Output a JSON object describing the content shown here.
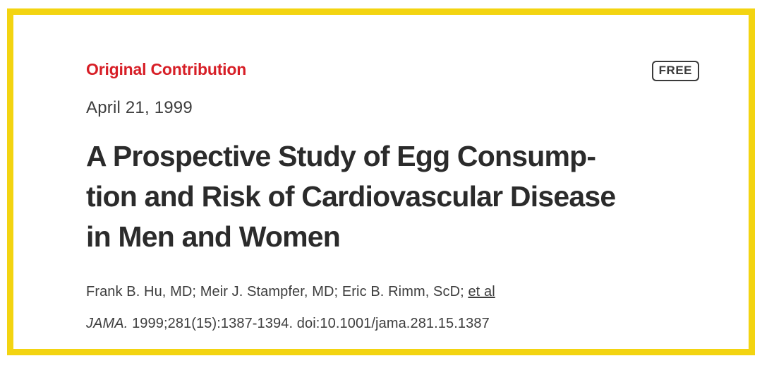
{
  "colors": {
    "accent_red": "#d71e26",
    "frame_yellow": "#f3d411",
    "text_dark": "#2b2b2b",
    "text_gray": "#3d3d3d",
    "badge_border": "#3a3a3a"
  },
  "badge": {
    "label": "FREE"
  },
  "article": {
    "category": "Original Contribution",
    "date": "April 21, 1999",
    "title_lines": [
      "A Prospective Study of Egg Consump-",
      "tion and Risk of Cardiovascular Disease",
      "in Men and Women"
    ],
    "authors_prefix": "Frank B. Hu, MD; Meir J. Stampfer, MD; Eric B. Rimm, ScD; ",
    "et_al_label": "et al",
    "citation": {
      "journal": "JAMA.",
      "rest": " 1999;281(15):1387-1394. doi:10.1001/jama.281.15.1387"
    }
  }
}
